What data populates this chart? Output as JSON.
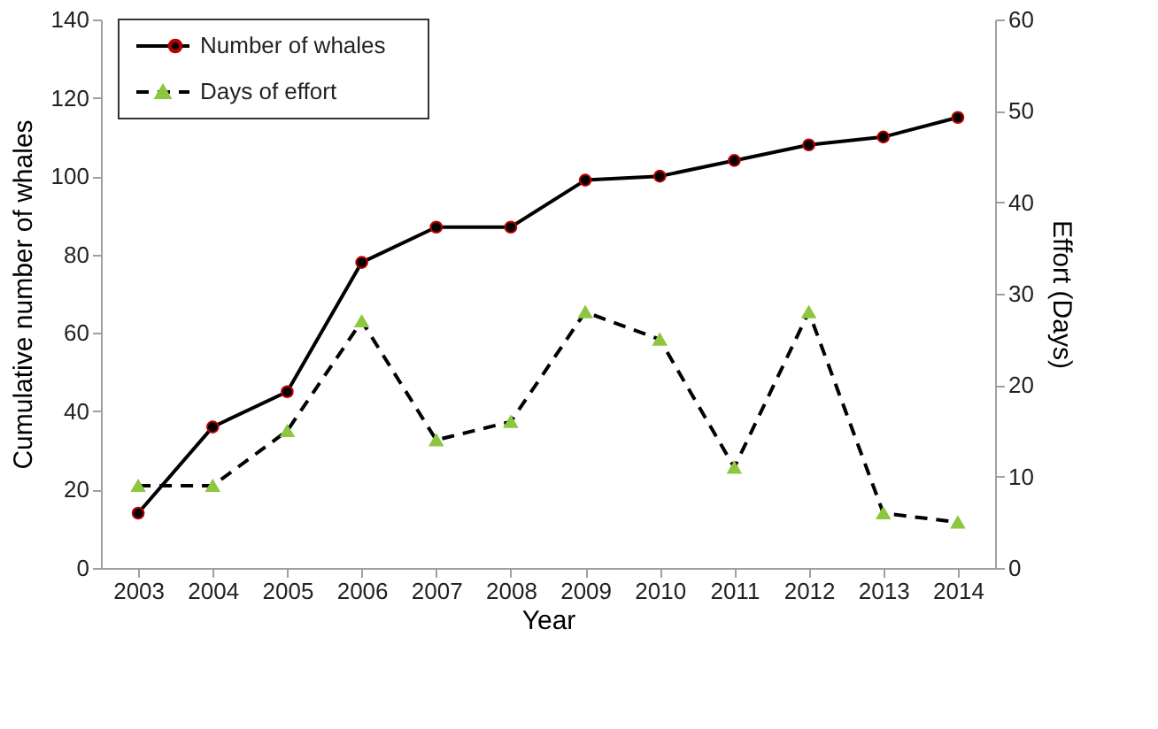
{
  "chart_data": {
    "type": "line",
    "xlabel": "Year",
    "ylabel": "Cumulative number of whales",
    "y2label": "Effort (Days)",
    "categories": [
      "2003",
      "2004",
      "2005",
      "2006",
      "2007",
      "2008",
      "2009",
      "2010",
      "2011",
      "2012",
      "2013",
      "2014"
    ],
    "series": [
      {
        "name": "Number of whales",
        "color": "#000000",
        "marker": "circle",
        "line_style": "solid",
        "values": [
          14,
          36,
          45,
          78,
          87,
          87,
          99,
          100,
          104,
          108,
          110,
          115
        ]
      },
      {
        "name": "Days of effort",
        "color": "#8dc63f",
        "marker": "triangle",
        "line_style": "dashed",
        "axis": "y2",
        "values": [
          9,
          9,
          15,
          27,
          14,
          16,
          28,
          25,
          11,
          28,
          6,
          5
        ]
      }
    ],
    "ylim": [
      0,
      140
    ],
    "yticks": [
      0,
      20,
      40,
      60,
      80,
      100,
      120,
      140
    ],
    "y2lim": [
      0,
      60
    ],
    "y2ticks": [
      0,
      10,
      20,
      30,
      40,
      50,
      60
    ],
    "grid": false,
    "legend": "top left"
  }
}
